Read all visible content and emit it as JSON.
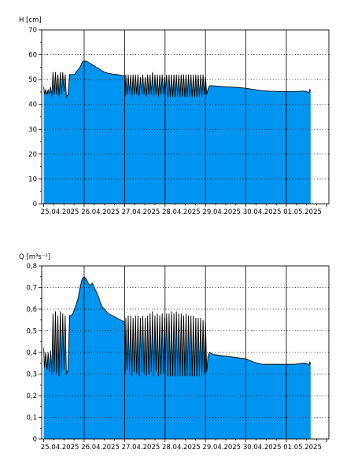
{
  "chart_data": [
    {
      "type": "area",
      "ylabel": "H [cm]",
      "ylim": [
        0,
        70
      ],
      "yticks": [
        0,
        10,
        20,
        30,
        40,
        50,
        60,
        70
      ],
      "ytick_labels": [
        "0",
        "10",
        "20",
        "30",
        "40",
        "50",
        "60",
        "70"
      ],
      "xlim": [
        -0.05,
        7.05
      ],
      "day_lines": [
        1,
        2,
        3,
        4,
        5,
        6
      ],
      "xtick_labels": [
        {
          "x": 0.4,
          "label": "25.04.2025"
        },
        {
          "x": 1.4,
          "label": "26.04.2025"
        },
        {
          "x": 2.4,
          "label": "27.04.2025"
        },
        {
          "x": 3.4,
          "label": "28.04.2025"
        },
        {
          "x": 4.4,
          "label": "29.04.2025"
        },
        {
          "x": 5.4,
          "label": "30.04.2025"
        },
        {
          "x": 6.4,
          "label": "01.05.2025"
        }
      ],
      "grid": true,
      "fill_color": "#0095f0",
      "line_color": "#000000",
      "series": [
        {
          "x": [
            0.0,
            0.02,
            0.05,
            0.08,
            0.11,
            0.14,
            0.17,
            0.2,
            0.23,
            0.26,
            0.29,
            0.32,
            0.35,
            0.38,
            0.41,
            0.44,
            0.47,
            0.5,
            0.53,
            0.56,
            0.6,
            0.64,
            0.68,
            0.72,
            0.76,
            0.8,
            0.85,
            0.9,
            0.95,
            1.0,
            1.05,
            1.1,
            1.15,
            1.2,
            1.25,
            1.3,
            1.35,
            1.4,
            1.45,
            1.5,
            1.6,
            1.7,
            1.8,
            1.9,
            2.0,
            2.01,
            2.03,
            2.06,
            2.09,
            2.12,
            2.15,
            2.18,
            2.21,
            2.24,
            2.27,
            2.3,
            2.33,
            2.36,
            2.39,
            2.42,
            2.45,
            2.48,
            2.51,
            2.54,
            2.57,
            2.6,
            2.63,
            2.66,
            2.69,
            2.72,
            2.75,
            2.78,
            2.81,
            2.84,
            2.87,
            2.9,
            2.93,
            2.96,
            2.99,
            3.0,
            3.04,
            3.07,
            3.1,
            3.13,
            3.16,
            3.19,
            3.22,
            3.25,
            3.28,
            3.31,
            3.34,
            3.37,
            3.4,
            3.43,
            3.46,
            3.49,
            3.52,
            3.55,
            3.58,
            3.61,
            3.64,
            3.67,
            3.7,
            3.73,
            3.76,
            3.79,
            3.82,
            3.85,
            3.88,
            3.91,
            3.94,
            3.97,
            4.0,
            4.03,
            4.06,
            4.1,
            4.2,
            4.4,
            4.6,
            4.8,
            5.0,
            5.2,
            5.4,
            5.6,
            5.8,
            6.0,
            6.2,
            6.4,
            6.5,
            6.55,
            6.58,
            6.6
          ],
          "values": [
            47,
            44,
            46,
            44,
            46,
            44,
            47,
            43,
            53,
            44,
            53,
            44,
            52,
            43,
            53,
            44,
            53,
            45,
            52,
            43,
            44,
            52,
            52,
            52,
            52,
            53,
            54,
            55,
            57,
            57.5,
            57.5,
            57,
            56.5,
            56,
            55.5,
            55,
            54.5,
            54,
            53.5,
            53,
            52.5,
            52.2,
            52,
            51.8,
            51.5,
            43,
            52,
            44,
            52,
            44,
            52,
            43,
            52,
            44,
            52,
            44,
            52,
            43,
            51,
            44,
            52,
            44,
            51,
            43,
            52,
            44,
            52,
            44,
            53,
            43,
            52,
            44,
            52,
            43,
            52,
            44,
            52,
            44,
            51,
            44,
            52,
            43,
            52,
            43,
            52,
            43,
            52,
            43,
            52,
            43,
            52,
            43,
            52,
            43,
            52,
            43,
            52,
            43,
            52,
            43,
            52,
            43,
            52,
            43,
            52,
            43,
            52,
            43,
            52,
            43,
            52,
            44,
            51,
            44,
            46,
            47.5,
            47.5,
            47.2,
            47,
            46.8,
            46.5,
            46,
            45.5,
            45.3,
            45.2,
            45.2,
            45.2,
            45.3,
            45.3,
            44.5,
            46,
            45.5
          ]
        }
      ]
    },
    {
      "type": "area",
      "ylabel": "Q [m³s⁻¹]",
      "ylim": [
        0,
        0.8
      ],
      "yticks": [
        0,
        0.1,
        0.2,
        0.3,
        0.4,
        0.5,
        0.6,
        0.7,
        0.8
      ],
      "ytick_labels": [
        "0",
        "0,1",
        "0,2",
        "0,3",
        "0,4",
        "0,5",
        "0,6",
        "0,7",
        "0,8"
      ],
      "xlim": [
        -0.05,
        7.05
      ],
      "day_lines": [
        1,
        2,
        3,
        4,
        5,
        6
      ],
      "xtick_labels": [
        {
          "x": 0.4,
          "label": "25.04.2025"
        },
        {
          "x": 1.4,
          "label": "26.04.2025"
        },
        {
          "x": 2.4,
          "label": "27.04.2025"
        },
        {
          "x": 3.4,
          "label": "28.04.2025"
        },
        {
          "x": 4.4,
          "label": "29.04.2025"
        },
        {
          "x": 5.4,
          "label": "30.04.2025"
        },
        {
          "x": 6.4,
          "label": "01.05.2025"
        }
      ],
      "grid": true,
      "fill_color": "#0095f0",
      "line_color": "#000000",
      "series": [
        {
          "x": [
            0.0,
            0.02,
            0.05,
            0.08,
            0.11,
            0.14,
            0.17,
            0.2,
            0.23,
            0.26,
            0.29,
            0.32,
            0.35,
            0.38,
            0.41,
            0.44,
            0.47,
            0.5,
            0.53,
            0.56,
            0.6,
            0.64,
            0.68,
            0.72,
            0.76,
            0.8,
            0.85,
            0.9,
            0.95,
            1.0,
            1.05,
            1.1,
            1.15,
            1.2,
            1.25,
            1.3,
            1.35,
            1.4,
            1.45,
            1.5,
            1.6,
            1.7,
            1.8,
            1.9,
            2.0,
            2.01,
            2.03,
            2.06,
            2.09,
            2.12,
            2.15,
            2.18,
            2.21,
            2.24,
            2.27,
            2.3,
            2.33,
            2.36,
            2.39,
            2.42,
            2.45,
            2.48,
            2.51,
            2.54,
            2.57,
            2.6,
            2.63,
            2.66,
            2.69,
            2.72,
            2.75,
            2.78,
            2.81,
            2.84,
            2.87,
            2.9,
            2.93,
            2.96,
            2.99,
            3.0,
            3.04,
            3.07,
            3.1,
            3.13,
            3.16,
            3.19,
            3.22,
            3.25,
            3.28,
            3.31,
            3.34,
            3.37,
            3.4,
            3.43,
            3.46,
            3.49,
            3.52,
            3.55,
            3.58,
            3.61,
            3.64,
            3.67,
            3.7,
            3.73,
            3.76,
            3.79,
            3.82,
            3.85,
            3.88,
            3.91,
            3.94,
            3.97,
            4.0,
            4.03,
            4.06,
            4.1,
            4.2,
            4.4,
            4.6,
            4.8,
            5.0,
            5.2,
            5.4,
            5.6,
            5.8,
            6.0,
            6.2,
            6.4,
            6.5,
            6.55,
            6.58,
            6.6
          ],
          "values": [
            0.42,
            0.33,
            0.4,
            0.32,
            0.4,
            0.31,
            0.41,
            0.3,
            0.58,
            0.31,
            0.59,
            0.3,
            0.57,
            0.29,
            0.59,
            0.31,
            0.58,
            0.32,
            0.57,
            0.3,
            0.32,
            0.57,
            0.57,
            0.58,
            0.6,
            0.62,
            0.65,
            0.7,
            0.74,
            0.75,
            0.74,
            0.72,
            0.71,
            0.72,
            0.7,
            0.68,
            0.66,
            0.63,
            0.61,
            0.6,
            0.58,
            0.57,
            0.56,
            0.55,
            0.54,
            0.3,
            0.56,
            0.32,
            0.57,
            0.3,
            0.57,
            0.29,
            0.56,
            0.31,
            0.57,
            0.3,
            0.57,
            0.29,
            0.56,
            0.31,
            0.57,
            0.3,
            0.56,
            0.29,
            0.57,
            0.3,
            0.58,
            0.31,
            0.59,
            0.29,
            0.57,
            0.31,
            0.58,
            0.29,
            0.57,
            0.3,
            0.58,
            0.3,
            0.56,
            0.3,
            0.58,
            0.29,
            0.58,
            0.29,
            0.59,
            0.29,
            0.58,
            0.29,
            0.59,
            0.29,
            0.58,
            0.29,
            0.58,
            0.29,
            0.57,
            0.29,
            0.58,
            0.29,
            0.57,
            0.29,
            0.57,
            0.29,
            0.57,
            0.29,
            0.56,
            0.29,
            0.56,
            0.29,
            0.56,
            0.29,
            0.55,
            0.3,
            0.54,
            0.31,
            0.38,
            0.4,
            0.39,
            0.385,
            0.38,
            0.375,
            0.37,
            0.355,
            0.345,
            0.345,
            0.345,
            0.345,
            0.345,
            0.35,
            0.35,
            0.34,
            0.355,
            0.345
          ]
        }
      ]
    }
  ]
}
